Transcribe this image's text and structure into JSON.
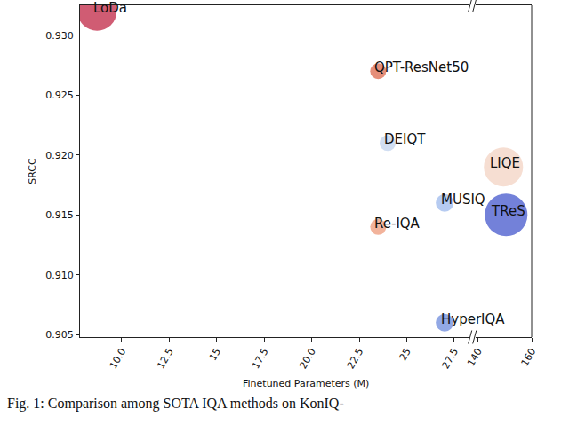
{
  "chart_data": {
    "type": "scatter",
    "xlabel": "Finetuned Parameters (M)",
    "ylabel": "SRCC",
    "labels": [
      "LoDa",
      "QPT-ResNet50",
      "DEIQT",
      "LIQE",
      "MUSIQ",
      "TReS",
      "Re-IQA",
      "HyperIQA"
    ],
    "x": [
      8.7,
      23.5,
      24.0,
      149.5,
      27.0,
      150.5,
      23.5,
      27.0
    ],
    "values": [
      0.932,
      0.927,
      0.921,
      0.919,
      0.916,
      0.915,
      0.914,
      0.906
    ],
    "sizes": [
      44,
      18,
      18,
      44,
      20,
      48,
      18,
      20
    ],
    "colors": [
      "#c8405a",
      "#e07a62",
      "#c9d8f0",
      "#f5d8ca",
      "#a9c2ef",
      "#5a6bd2",
      "#f0a68a",
      "#7f99e0"
    ],
    "xlim": [
      7.8,
      160
    ],
    "xbreak": [
      28.3,
      139
    ],
    "xticks": [
      {
        "value": 10,
        "label": "10.0"
      },
      12.5,
      15,
      {
        "value": 17.5,
        "label": "17.5"
      },
      {
        "value": 20,
        "label": "20.0"
      },
      22.5,
      25,
      {
        "value": 27.5,
        "label": "27.5"
      },
      140,
      160
    ],
    "ylim": [
      0.9048,
      0.9325
    ],
    "yticks": [
      0.905,
      {
        "value": 0.91,
        "label": "0.910"
      },
      0.915,
      {
        "value": 0.92,
        "label": "0.920"
      },
      0.925,
      {
        "value": 0.93,
        "label": "0.930"
      }
    ],
    "grid": false
  },
  "caption": "Fig. 1: Comparison among SOTA IQA methods on KonIQ-"
}
